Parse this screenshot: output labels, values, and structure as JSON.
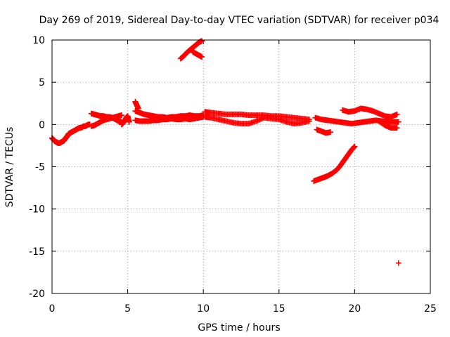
{
  "chart_data": {
    "type": "scatter",
    "title": "Day 269 of 2019, Sidereal Day-to-day VTEC variation (SDTVAR) for receiver p034",
    "xlabel": "GPS time / hours",
    "ylabel": "SDTVAR / TECUs",
    "xlim": [
      0,
      25
    ],
    "ylim": [
      -20,
      10
    ],
    "xticks": [
      0,
      5,
      10,
      15,
      20,
      25
    ],
    "yticks": [
      10,
      5,
      0,
      -5,
      -10,
      -15,
      -20
    ],
    "grid": true,
    "marker": "+",
    "color": "#ff0000",
    "series": [
      {
        "name": "early-negative-arc",
        "x": [
          0.0,
          0.1,
          0.2,
          0.3,
          0.4,
          0.5,
          0.6,
          0.7,
          0.8,
          0.9,
          1.0,
          1.1,
          1.2,
          1.3,
          1.4,
          1.5,
          1.6,
          1.7,
          1.8,
          1.9,
          2.0,
          2.1,
          2.2,
          2.3,
          2.4,
          2.5
        ],
        "y": [
          -1.6,
          -1.8,
          -2.0,
          -2.1,
          -2.2,
          -2.2,
          -2.1,
          -2.0,
          -1.9,
          -1.6,
          -1.4,
          -1.1,
          -1.0,
          -0.9,
          -0.8,
          -0.7,
          -0.6,
          -0.5,
          -0.4,
          -0.4,
          -0.3,
          -0.2,
          -0.2,
          -0.1,
          0.0,
          0.0
        ]
      },
      {
        "name": "early-band-a",
        "x": [
          2.6,
          2.8,
          3.0,
          3.2,
          3.4,
          3.6,
          3.8,
          4.0,
          4.2,
          4.4,
          4.6
        ],
        "y": [
          1.3,
          1.2,
          1.1,
          1.0,
          1.0,
          0.9,
          0.9,
          0.8,
          0.9,
          1.0,
          1.1
        ]
      },
      {
        "name": "early-band-b",
        "x": [
          2.6,
          2.8,
          3.0,
          3.2,
          3.4,
          3.6,
          3.8,
          4.0,
          4.2,
          4.4,
          4.6
        ],
        "y": [
          -0.2,
          -0.1,
          0.1,
          0.3,
          0.5,
          0.6,
          0.7,
          0.8,
          0.6,
          0.4,
          0.3
        ]
      },
      {
        "name": "short-segment-near-5h",
        "x": [
          4.6,
          4.7,
          4.8,
          4.9,
          5.0,
          5.1
        ],
        "y": [
          0.0,
          0.2,
          0.4,
          0.8,
          1.0,
          0.3
        ]
      },
      {
        "name": "mid-band-a",
        "x": [
          5.5,
          5.8,
          6.1,
          6.4,
          6.7,
          7.0,
          7.3,
          7.6,
          7.9,
          8.2,
          8.5,
          8.8,
          9.1,
          9.4,
          9.7,
          10.0
        ],
        "y": [
          1.6,
          1.4,
          1.2,
          1.1,
          1.0,
          0.9,
          0.9,
          0.8,
          0.9,
          0.9,
          1.0,
          1.0,
          1.1,
          1.0,
          1.0,
          1.1
        ]
      },
      {
        "name": "mid-band-b",
        "x": [
          5.5,
          5.8,
          6.1,
          6.4,
          6.7,
          7.0,
          7.3,
          7.6,
          7.9,
          8.2,
          8.5,
          8.8,
          9.1,
          9.4,
          9.7,
          10.0
        ],
        "y": [
          0.5,
          0.4,
          0.4,
          0.4,
          0.5,
          0.5,
          0.6,
          0.6,
          0.7,
          0.6,
          0.6,
          0.7,
          0.6,
          0.7,
          0.8,
          0.9
        ]
      },
      {
        "name": "spike-5-5h",
        "x": [
          5.5,
          5.6,
          5.7
        ],
        "y": [
          2.7,
          2.3,
          1.9
        ]
      },
      {
        "name": "high-arc-9h",
        "x": [
          8.5,
          8.7,
          8.9,
          9.1,
          9.3,
          9.5,
          9.7,
          9.9
        ],
        "y": [
          7.8,
          8.1,
          8.5,
          8.8,
          9.1,
          9.4,
          9.7,
          9.9
        ]
      },
      {
        "name": "high-arc-9h-lower",
        "x": [
          9.3,
          9.5,
          9.7,
          9.9
        ],
        "y": [
          8.6,
          8.4,
          8.2,
          8.0
        ]
      },
      {
        "name": "late-band-a",
        "x": [
          10.1,
          10.5,
          11.0,
          11.5,
          12.0,
          12.5,
          13.0,
          13.5,
          14.0,
          14.5,
          15.0,
          15.5,
          16.0,
          16.5,
          17.0
        ],
        "y": [
          1.5,
          1.4,
          1.3,
          1.2,
          1.2,
          1.2,
          1.1,
          1.1,
          1.1,
          1.0,
          1.0,
          0.9,
          0.8,
          0.7,
          0.6
        ]
      },
      {
        "name": "late-band-b",
        "x": [
          10.1,
          10.5,
          11.0,
          11.5,
          12.0,
          12.5,
          13.0,
          13.5,
          14.0,
          14.5,
          15.0,
          15.5,
          16.0,
          16.5,
          17.0
        ],
        "y": [
          0.9,
          0.8,
          0.6,
          0.4,
          0.2,
          0.1,
          0.1,
          0.4,
          0.8,
          0.7,
          0.6,
          0.3,
          0.1,
          0.2,
          0.4
        ]
      },
      {
        "name": "post-gap-a",
        "x": [
          17.4,
          17.8,
          18.2,
          18.6,
          19.0,
          19.4,
          19.8,
          20.2,
          20.6,
          21.0,
          21.4,
          21.8,
          22.2,
          22.6,
          22.9
        ],
        "y": [
          0.8,
          0.6,
          0.5,
          0.4,
          0.3,
          0.2,
          0.1,
          0.2,
          0.3,
          0.4,
          0.5,
          0.4,
          0.3,
          0.3,
          0.3
        ]
      },
      {
        "name": "post-gap-upper",
        "x": [
          19.2,
          19.6,
          20.0,
          20.4,
          20.8,
          21.2,
          21.6,
          22.0,
          22.4,
          22.8
        ],
        "y": [
          1.7,
          1.5,
          1.6,
          1.9,
          1.8,
          1.6,
          1.3,
          1.0,
          0.9,
          1.2
        ]
      },
      {
        "name": "post-gap-lower",
        "x": [
          21.6,
          22.0,
          22.4,
          22.8
        ],
        "y": [
          0.4,
          -0.1,
          -0.4,
          -0.4
        ]
      },
      {
        "name": "dip-18h",
        "x": [
          17.5,
          17.8,
          18.1,
          18.4
        ],
        "y": [
          -0.6,
          -0.8,
          -1.0,
          -0.9
        ]
      },
      {
        "name": "rising-arc-18-20h",
        "x": [
          17.3,
          17.6,
          17.9,
          18.2,
          18.5,
          18.8,
          19.0,
          19.2,
          19.4,
          19.6,
          19.8,
          20.0
        ],
        "y": [
          -6.7,
          -6.5,
          -6.3,
          -6.1,
          -5.8,
          -5.4,
          -5.0,
          -4.5,
          -4.0,
          -3.5,
          -3.0,
          -2.6
        ]
      },
      {
        "name": "outlier",
        "x": [
          22.9
        ],
        "y": [
          -16.4
        ]
      }
    ]
  }
}
